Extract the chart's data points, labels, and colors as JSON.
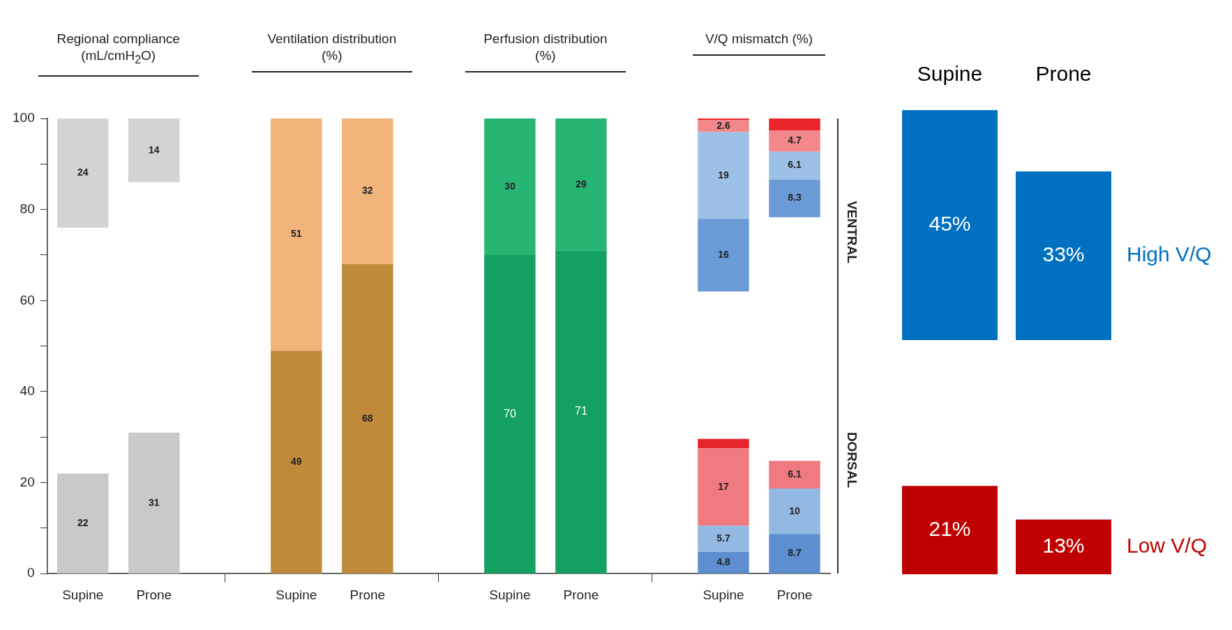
{
  "chart_data": [
    {
      "type": "bar",
      "categories": [
        "Supine",
        "Prone",
        null,
        "Supine",
        "Prone",
        null,
        "Supine",
        "Prone",
        null,
        "Supine",
        "Prone"
      ],
      "ylim": [
        0,
        100
      ],
      "yticks": [
        0,
        {
          "value": 10,
          "label": null
        },
        20,
        {
          "value": 30,
          "label": null
        },
        40,
        {
          "value": 50,
          "label": null
        },
        60,
        {
          "value": 70,
          "label": null
        },
        80,
        {
          "value": 90,
          "label": null
        },
        100
      ],
      "grid": false,
      "legend": false,
      "annotations": [
        "Regional compliance (mL/cmH$_{2}$O)",
        "Ventilation distribution (%)",
        "Perfusion distribution (%)",
        "V/Q mismatch (%)",
        "VENTRAL",
        "DORSAL"
      ],
      "series": [
        {
          "values": [
            22,
            31,
            null,
            49,
            68,
            null,
            70,
            71,
            null,
            4.8,
            8.7
          ],
          "base": [
            0,
            0,
            null,
            0,
            0,
            null,
            0,
            0,
            null,
            0,
            0
          ],
          "colors": [
            "#c9c9c9",
            "#c9c9c9",
            null,
            "#bf8b3a",
            "#bf8b3a",
            null,
            "#13a061",
            "#13a061",
            null,
            "#5d8fd0",
            "#5d8fd0"
          ],
          "value_labels": [
            "22",
            "31",
            null,
            "49",
            "68",
            null,
            "70",
            "71",
            null,
            "4.8",
            "8.7"
          ]
        },
        {
          "values": [
            null,
            null,
            null,
            null,
            null,
            null,
            null,
            null,
            null,
            5.7,
            10
          ],
          "base": [
            null,
            null,
            null,
            null,
            null,
            null,
            null,
            null,
            null,
            4.8,
            8.7
          ],
          "colors": [
            null,
            null,
            null,
            null,
            null,
            null,
            null,
            null,
            null,
            "#93b9e3",
            "#93b9e3"
          ],
          "value_labels": [
            null,
            null,
            null,
            null,
            null,
            null,
            null,
            null,
            null,
            "5.7",
            "10"
          ]
        },
        {
          "values": [
            null,
            null,
            null,
            null,
            null,
            null,
            null,
            null,
            null,
            17,
            6.1
          ],
          "base": [
            null,
            null,
            null,
            null,
            null,
            null,
            null,
            null,
            null,
            10.5,
            18.7
          ],
          "colors": [
            null,
            null,
            null,
            null,
            null,
            null,
            null,
            null,
            null,
            "#ef7a7f",
            "#ef7a7f"
          ],
          "value_labels": [
            null,
            null,
            null,
            null,
            null,
            null,
            null,
            null,
            null,
            "17",
            "6.1"
          ]
        },
        {
          "values": [
            null,
            null,
            null,
            null,
            null,
            null,
            null,
            null,
            null,
            2.1,
            null
          ],
          "base": [
            null,
            null,
            null,
            null,
            null,
            null,
            null,
            null,
            null,
            27.5,
            null
          ],
          "colors": [
            null,
            null,
            null,
            null,
            null,
            null,
            null,
            null,
            null,
            "#e5262c",
            null
          ]
        },
        {
          "values": [
            24,
            14,
            null,
            51,
            32,
            null,
            30,
            29,
            null,
            16,
            8.3
          ],
          "base": [
            76,
            86,
            null,
            49,
            68,
            null,
            70,
            71,
            null,
            62,
            78.3
          ],
          "colors": [
            "#d3d3d3",
            "#d3d3d3",
            null,
            "#f0b37a",
            "#f0b37a",
            null,
            "#27b574",
            "#27b574",
            null,
            "#6a9bd6",
            "#6a9bd6"
          ],
          "value_labels": [
            "24",
            "14",
            null,
            "51",
            "32",
            null,
            "30",
            "29",
            null,
            "16",
            "8.3"
          ]
        },
        {
          "values": [
            null,
            null,
            null,
            null,
            null,
            null,
            null,
            null,
            null,
            19,
            6.1
          ],
          "base": [
            null,
            null,
            null,
            null,
            null,
            null,
            null,
            null,
            null,
            78,
            86.6
          ],
          "colors": [
            null,
            null,
            null,
            null,
            null,
            null,
            null,
            null,
            null,
            "#9cc0e6",
            "#9cc0e6"
          ],
          "value_labels": [
            null,
            null,
            null,
            null,
            null,
            null,
            null,
            null,
            null,
            "19",
            "6.1"
          ]
        },
        {
          "values": [
            null,
            null,
            null,
            null,
            null,
            null,
            null,
            null,
            null,
            2.6,
            4.7
          ],
          "base": [
            null,
            null,
            null,
            null,
            null,
            null,
            null,
            null,
            null,
            97,
            92.7
          ],
          "colors": [
            null,
            null,
            null,
            null,
            null,
            null,
            null,
            null,
            null,
            "#f3888b",
            "#f3888b"
          ],
          "value_labels": [
            null,
            null,
            null,
            null,
            null,
            null,
            null,
            null,
            null,
            "2.6",
            "4.7"
          ]
        },
        {
          "values": [
            null,
            null,
            null,
            null,
            null,
            null,
            null,
            null,
            null,
            0.4,
            2.6
          ],
          "base": [
            null,
            null,
            null,
            null,
            null,
            null,
            null,
            null,
            null,
            99.6,
            97.4
          ],
          "colors": [
            null,
            null,
            null,
            null,
            null,
            null,
            null,
            null,
            null,
            "#e8262b",
            "#e8262b"
          ]
        }
      ]
    },
    {
      "type": "bar",
      "categories": [
        "Supine",
        "Prone"
      ],
      "tick_labels": "x",
      "legend": false,
      "series": [
        {
          "name": "High V/Q",
          "color": "#0070c0",
          "values": [
            45,
            33
          ],
          "value_labels": [
            "45%",
            "33%"
          ]
        }
      ]
    },
    {
      "type": "bar",
      "categories": [
        null,
        null
      ],
      "tick_labels": false,
      "legend": false,
      "series": [
        {
          "name": "Low V/Q",
          "color": "#c00000",
          "values": [
            21,
            13
          ],
          "value_labels": [
            "21%",
            "13%"
          ]
        }
      ]
    }
  ]
}
